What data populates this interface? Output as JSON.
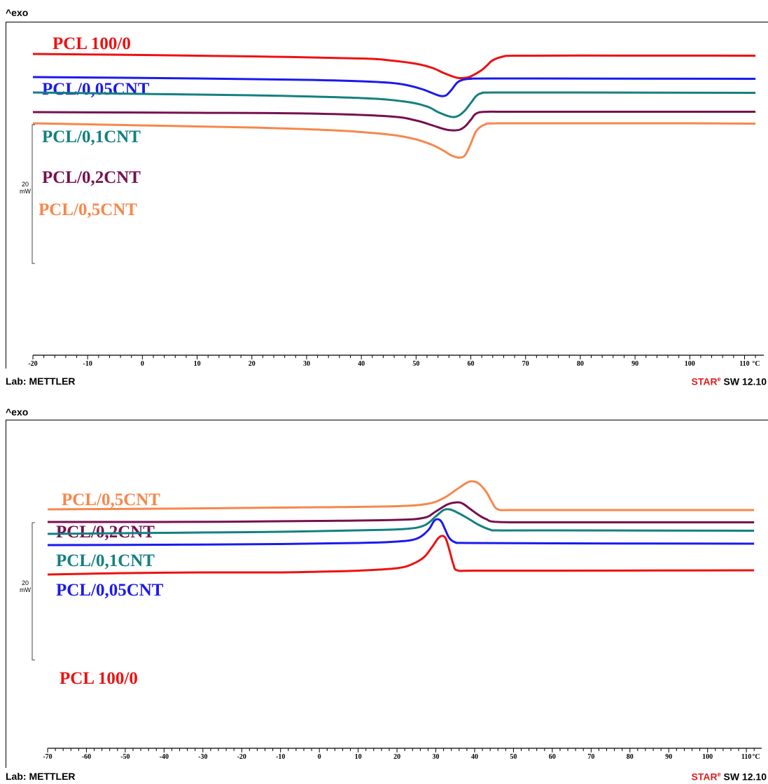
{
  "header": {
    "exo": "^exo"
  },
  "footer": {
    "lab": "Lab: METTLER",
    "sw_brand": "STAR",
    "sw_sup": "e",
    "sw_version": " SW 12.10"
  },
  "scale_bar": {
    "value": "20",
    "unit": "mW"
  },
  "colors": {
    "PCL 100/0": "#ee1111",
    "PCL/0,05CNT": "#1a1aee",
    "PCL/0,1CNT": "#138080",
    "PCL/0,2CNT": "#77104f",
    "PCL/0,5CNT": "#f7874b"
  },
  "chart_data": [
    {
      "type": "line",
      "xunit": "°C",
      "xlim": [
        -20,
        112
      ],
      "xticks": [
        -20,
        -10,
        0,
        10,
        20,
        30,
        40,
        50,
        60,
        70,
        80,
        90,
        100,
        110
      ],
      "series": [
        {
          "name": "PCL 100/0",
          "label": "PCL 100/0",
          "points": [
            [
              -20,
              3
            ],
            [
              0,
              1.5
            ],
            [
              20,
              -0.5
            ],
            [
              40,
              -3.5
            ],
            [
              45,
              -6
            ],
            [
              50,
              -11
            ],
            [
              53,
              -17
            ],
            [
              55,
              -24
            ],
            [
              57,
              -30
            ],
            [
              58,
              -31.5
            ],
            [
              59,
              -31
            ],
            [
              60,
              -29
            ],
            [
              62,
              -20
            ],
            [
              63,
              -13
            ],
            [
              64,
              -6
            ],
            [
              66,
              -0.5
            ],
            [
              68,
              0.5
            ],
            [
              80,
              0.7
            ],
            [
              100,
              0.6
            ],
            [
              112,
              0.5
            ]
          ]
        },
        {
          "name": "PCL/0,05CNT",
          "label": "PCL/0,05CNT",
          "points": [
            [
              -20,
              -30
            ],
            [
              10,
              -32
            ],
            [
              30,
              -34
            ],
            [
              40,
              -36
            ],
            [
              45,
              -38
            ],
            [
              48,
              -41
            ],
            [
              51,
              -47
            ],
            [
              53,
              -53
            ],
            [
              54.5,
              -57
            ],
            [
              55.5,
              -56
            ],
            [
              56.5,
              -48
            ],
            [
              57.5,
              -38
            ],
            [
              58.5,
              -34
            ],
            [
              60,
              -32.5
            ],
            [
              65,
              -32
            ],
            [
              112,
              -32.5
            ]
          ]
        },
        {
          "name": "PCL/0,1CNT",
          "label": "PCL/0,1CNT",
          "points": [
            [
              -20,
              -52
            ],
            [
              0,
              -54
            ],
            [
              20,
              -56
            ],
            [
              40,
              -60
            ],
            [
              48,
              -65
            ],
            [
              52,
              -72
            ],
            [
              54,
              -80
            ],
            [
              56,
              -86
            ],
            [
              57,
              -87
            ],
            [
              58,
              -84
            ],
            [
              59,
              -77
            ],
            [
              60,
              -67
            ],
            [
              61,
              -57
            ],
            [
              62,
              -53
            ],
            [
              64,
              -52
            ],
            [
              80,
              -52
            ],
            [
              112,
              -52.5
            ]
          ]
        },
        {
          "name": "PCL/0,2CNT",
          "label": "PCL/0,2CNT",
          "points": [
            [
              -20,
              -80
            ],
            [
              10,
              -81
            ],
            [
              30,
              -82
            ],
            [
              45,
              -86
            ],
            [
              50,
              -92
            ],
            [
              53,
              -99
            ],
            [
              55,
              -104
            ],
            [
              56.5,
              -106
            ],
            [
              58,
              -105
            ],
            [
              59,
              -100
            ],
            [
              60,
              -91
            ],
            [
              61,
              -82
            ],
            [
              63,
              -79.5
            ],
            [
              70,
              -79.5
            ],
            [
              112,
              -79.5
            ]
          ]
        },
        {
          "name": "PCL/0,5CNT",
          "label": "PCL/0,5CNT",
          "points": [
            [
              -20,
              -96
            ],
            [
              0,
              -99
            ],
            [
              20,
              -102
            ],
            [
              35,
              -106
            ],
            [
              45,
              -112
            ],
            [
              50,
              -119
            ],
            [
              53,
              -127
            ],
            [
              55,
              -135
            ],
            [
              56.5,
              -142
            ],
            [
              58,
              -145
            ],
            [
              59,
              -141
            ],
            [
              60,
              -125
            ],
            [
              61,
              -107
            ],
            [
              62.5,
              -98
            ],
            [
              65,
              -96
            ],
            [
              80,
              -96
            ],
            [
              100,
              -96
            ],
            [
              112,
              -96.5
            ]
          ]
        }
      ]
    },
    {
      "type": "line",
      "xunit": "°C",
      "xlim": [
        -70,
        112
      ],
      "xticks": [
        -70,
        -60,
        -50,
        -40,
        -30,
        -20,
        -10,
        0,
        10,
        20,
        30,
        40,
        50,
        60,
        70,
        80,
        90,
        100,
        110
      ],
      "series": [
        {
          "name": "PCL/0,5CNT",
          "label": "PCL/0,5CNT",
          "points": [
            [
              -70,
              -30
            ],
            [
              -40,
              -29
            ],
            [
              -20,
              -28
            ],
            [
              0,
              -27
            ],
            [
              20,
              -25.5
            ],
            [
              28,
              -22
            ],
            [
              32,
              -14
            ],
            [
              35,
              -3
            ],
            [
              38,
              8
            ],
            [
              39.5,
              10
            ],
            [
              41,
              7
            ],
            [
              43,
              -5
            ],
            [
              44.5,
              -20
            ],
            [
              46,
              -30
            ],
            [
              50,
              -31
            ],
            [
              70,
              -31
            ],
            [
              100,
              -31
            ],
            [
              112,
              -31
            ]
          ]
        },
        {
          "name": "PCL/0,2CNT",
          "label": "PCL/0,2CNT",
          "points": [
            [
              -70,
              -48
            ],
            [
              -40,
              -48
            ],
            [
              -20,
              -47.5
            ],
            [
              0,
              -46.5
            ],
            [
              20,
              -45
            ],
            [
              27,
              -42
            ],
            [
              30,
              -33
            ],
            [
              33,
              -23
            ],
            [
              35.5,
              -20
            ],
            [
              37,
              -22
            ],
            [
              39,
              -30
            ],
            [
              41,
              -38
            ],
            [
              43,
              -44
            ],
            [
              46,
              -48
            ],
            [
              60,
              -48.5
            ],
            [
              112,
              -48.5
            ]
          ]
        },
        {
          "name": "PCL/0,1CNT",
          "label": "PCL/0,1CNT",
          "points": [
            [
              -70,
              -65
            ],
            [
              -50,
              -64
            ],
            [
              -30,
              -63
            ],
            [
              -10,
              -62
            ],
            [
              10,
              -60
            ],
            [
              22,
              -58
            ],
            [
              27,
              -53
            ],
            [
              30,
              -40
            ],
            [
              32,
              -31
            ],
            [
              33.5,
              -30
            ],
            [
              35,
              -33
            ],
            [
              38,
              -42
            ],
            [
              41,
              -52
            ],
            [
              44,
              -59
            ],
            [
              46,
              -60
            ],
            [
              60,
              -60
            ],
            [
              112,
              -60.5
            ]
          ]
        },
        {
          "name": "PCL/0,05CNT",
          "label": "PCL/0,05CNT",
          "points": [
            [
              -70,
              -81
            ],
            [
              -40,
              -80.5
            ],
            [
              -10,
              -79.5
            ],
            [
              10,
              -78
            ],
            [
              20,
              -76
            ],
            [
              25,
              -72
            ],
            [
              28,
              -60
            ],
            [
              29.5,
              -47
            ],
            [
              30.5,
              -44
            ],
            [
              31.5,
              -48
            ],
            [
              32.5,
              -60
            ],
            [
              33.5,
              -71
            ],
            [
              35,
              -77
            ],
            [
              38,
              -78
            ],
            [
              60,
              -78.5
            ],
            [
              112,
              -79
            ]
          ]
        },
        {
          "name": "PCL 100/0",
          "label": "PCL 100/0",
          "points": [
            [
              -70,
              -123
            ],
            [
              -50,
              -121
            ],
            [
              -30,
              -120
            ],
            [
              -10,
              -120
            ],
            [
              0,
              -119
            ],
            [
              10,
              -117.5
            ],
            [
              20,
              -114
            ],
            [
              24,
              -108
            ],
            [
              27,
              -98
            ],
            [
              29,
              -84
            ],
            [
              30.5,
              -72
            ],
            [
              31.5,
              -68
            ],
            [
              32.5,
              -71
            ],
            [
              33.5,
              -88
            ],
            [
              34.5,
              -108
            ],
            [
              35.5,
              -117
            ],
            [
              40,
              -117.5
            ],
            [
              60,
              -117.5
            ],
            [
              112,
              -117
            ]
          ]
        }
      ]
    }
  ]
}
